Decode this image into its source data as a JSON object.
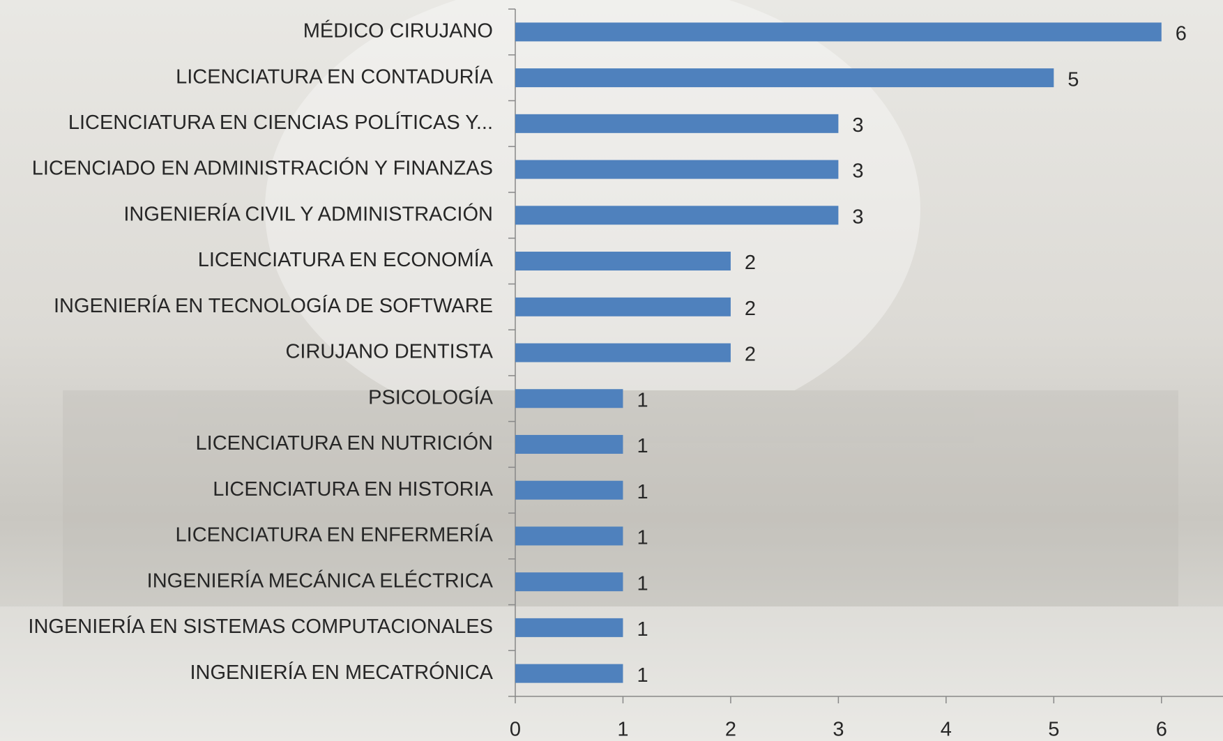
{
  "chart_data": {
    "type": "bar",
    "orientation": "horizontal",
    "categories": [
      "MÉDICO CIRUJANO",
      "LICENCIATURA EN CONTADURÍA",
      "LICENCIATURA EN CIENCIAS POLÍTICAS Y...",
      "LICENCIADO EN ADMINISTRACIÓN Y FINANZAS",
      "INGENIERÍA CIVIL Y ADMINISTRACIÓN",
      "LICENCIATURA EN ECONOMÍA",
      "INGENIERÍA EN TECNOLOGÍA DE SOFTWARE",
      "CIRUJANO DENTISTA",
      "PSICOLOGÍA",
      "LICENCIATURA EN NUTRICIÓN",
      "LICENCIATURA EN HISTORIA",
      "LICENCIATURA EN ENFERMERÍA",
      "INGENIERÍA MECÁNICA  ELÉCTRICA",
      "INGENIERÍA EN SISTEMAS COMPUTACIONALES",
      "INGENIERÍA EN MECATRÓNICA"
    ],
    "values": [
      6,
      5,
      3,
      3,
      3,
      2,
      2,
      2,
      1,
      1,
      1,
      1,
      1,
      1,
      1
    ],
    "color": "#4f81bd",
    "xlim": [
      0,
      6.5
    ],
    "xticks": [
      0,
      1,
      2,
      3,
      4,
      5,
      6
    ],
    "grid": false
  }
}
